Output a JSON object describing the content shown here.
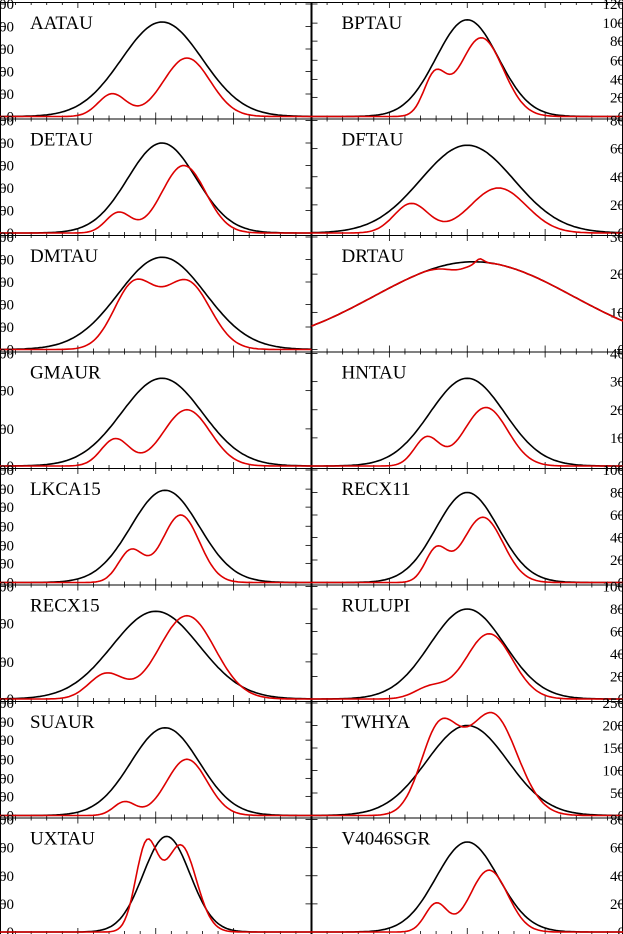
{
  "chart_data": [
    {
      "type": "line",
      "title": "AATAU",
      "ylim": [
        0,
        1
      ],
      "y_ticks": [
        {
          "value": 0,
          "label": "0"
        },
        {
          "value": 0.2,
          "label": "00"
        },
        {
          "value": 0.4,
          "label": "00"
        },
        {
          "value": 0.6,
          "label": "00"
        },
        {
          "value": 0.8,
          "label": "00"
        },
        {
          "value": 1.0,
          "label": "00"
        }
      ],
      "series": [
        {
          "color": "#000000",
          "peak": 0.84,
          "center": 0.52,
          "width": 0.13
        },
        {
          "color": "#dd0000",
          "components": [
            {
              "amp": 0.2,
              "center": 0.36,
              "width": 0.045
            },
            {
              "amp": 0.52,
              "center": 0.6,
              "width": 0.075
            }
          ]
        }
      ]
    },
    {
      "type": "line",
      "title": "BPTAU",
      "ylim": [
        0,
        1
      ],
      "y_ticks": [
        {
          "value": 0,
          "label": "0"
        },
        {
          "value": 0.17,
          "label": "20"
        },
        {
          "value": 0.33,
          "label": "40"
        },
        {
          "value": 0.5,
          "label": "60"
        },
        {
          "value": 0.67,
          "label": "80"
        },
        {
          "value": 0.83,
          "label": "100"
        },
        {
          "value": 1.0,
          "label": "120"
        }
      ],
      "series": [
        {
          "color": "#000000",
          "peak": 0.86,
          "center": 0.5,
          "width": 0.1
        },
        {
          "color": "#dd0000",
          "components": [
            {
              "amp": 0.34,
              "center": 0.395,
              "width": 0.035
            },
            {
              "amp": 0.7,
              "center": 0.545,
              "width": 0.07
            }
          ]
        }
      ]
    },
    {
      "type": "line",
      "title": "DETAU",
      "ylim": [
        0,
        1
      ],
      "y_ticks": [
        {
          "value": 0,
          "label": "0"
        },
        {
          "value": 0.2,
          "label": "00"
        },
        {
          "value": 0.4,
          "label": "00"
        },
        {
          "value": 0.6,
          "label": "00"
        },
        {
          "value": 0.8,
          "label": "00"
        },
        {
          "value": 1.0,
          "label": "00"
        }
      ],
      "series": [
        {
          "color": "#000000",
          "peak": 0.8,
          "center": 0.52,
          "width": 0.11
        },
        {
          "color": "#dd0000",
          "components": [
            {
              "amp": 0.18,
              "center": 0.38,
              "width": 0.04
            },
            {
              "amp": 0.6,
              "center": 0.59,
              "width": 0.07
            }
          ]
        }
      ]
    },
    {
      "type": "line",
      "title": "DFTAU",
      "ylim": [
        0,
        1
      ],
      "y_ticks": [
        {
          "value": 0,
          "label": "0"
        },
        {
          "value": 0.25,
          "label": "20"
        },
        {
          "value": 0.5,
          "label": "40"
        },
        {
          "value": 0.75,
          "label": "60"
        },
        {
          "value": 1.0,
          "label": "80"
        }
      ],
      "series": [
        {
          "color": "#000000",
          "peak": 0.78,
          "center": 0.5,
          "width": 0.15
        },
        {
          "color": "#dd0000",
          "components": [
            {
              "amp": 0.26,
              "center": 0.32,
              "width": 0.055
            },
            {
              "amp": 0.4,
              "center": 0.6,
              "width": 0.09
            }
          ]
        }
      ]
    },
    {
      "type": "line",
      "title": "DMTAU",
      "ylim": [
        0,
        1
      ],
      "y_ticks": [
        {
          "value": 0,
          "label": "0"
        },
        {
          "value": 0.2,
          "label": "00"
        },
        {
          "value": 0.4,
          "label": "00"
        },
        {
          "value": 0.6,
          "label": "00"
        },
        {
          "value": 0.8,
          "label": "00"
        },
        {
          "value": 1.0,
          "label": "00"
        }
      ],
      "series": [
        {
          "color": "#000000",
          "peak": 0.82,
          "center": 0.52,
          "width": 0.14
        },
        {
          "color": "#dd0000",
          "components": [
            {
              "amp": 0.57,
              "center": 0.43,
              "width": 0.065
            },
            {
              "amp": 0.6,
              "center": 0.6,
              "width": 0.075
            }
          ]
        }
      ]
    },
    {
      "type": "line",
      "title": "DRTAU",
      "ylim": [
        0,
        1
      ],
      "y_ticks": [
        {
          "value": 0,
          "label": "0"
        },
        {
          "value": 0.33,
          "label": "10"
        },
        {
          "value": 0.67,
          "label": "20"
        },
        {
          "value": 1.0,
          "label": "30"
        }
      ],
      "series": [
        {
          "color": "#000000",
          "peak": 0.78,
          "center": 0.52,
          "width": 0.32
        },
        {
          "color": "#dd0000",
          "components": [
            {
              "amp": 0.78,
              "center": 0.52,
              "width": 0.32
            }
          ]
        }
      ]
    },
    {
      "type": "line",
      "title": "GMAUR",
      "ylim": [
        0,
        1
      ],
      "y_ticks": [
        {
          "value": 0,
          "label": "0"
        },
        {
          "value": 0.33,
          "label": "00"
        },
        {
          "value": 0.67,
          "label": "00"
        },
        {
          "value": 1.0,
          "label": "00"
        }
      ],
      "series": [
        {
          "color": "#000000",
          "peak": 0.78,
          "center": 0.52,
          "width": 0.13
        },
        {
          "color": "#dd0000",
          "components": [
            {
              "amp": 0.24,
              "center": 0.37,
              "width": 0.045
            },
            {
              "amp": 0.5,
              "center": 0.6,
              "width": 0.075
            }
          ]
        }
      ]
    },
    {
      "type": "line",
      "title": "HNTAU",
      "ylim": [
        0,
        1
      ],
      "y_ticks": [
        {
          "value": 0,
          "label": "0"
        },
        {
          "value": 0.25,
          "label": "10"
        },
        {
          "value": 0.5,
          "label": "20"
        },
        {
          "value": 0.75,
          "label": "30"
        },
        {
          "value": 1.0,
          "label": "40"
        }
      ],
      "series": [
        {
          "color": "#000000",
          "peak": 0.78,
          "center": 0.5,
          "width": 0.12
        },
        {
          "color": "#dd0000",
          "components": [
            {
              "amp": 0.25,
              "center": 0.37,
              "width": 0.04
            },
            {
              "amp": 0.52,
              "center": 0.56,
              "width": 0.07
            }
          ]
        }
      ]
    },
    {
      "type": "line",
      "title": "LKCA15",
      "ylim": [
        0,
        1
      ],
      "y_ticks": [
        {
          "value": 0,
          "label": "0"
        },
        {
          "value": 0.17,
          "label": "00"
        },
        {
          "value": 0.33,
          "label": "00"
        },
        {
          "value": 0.5,
          "label": "00"
        },
        {
          "value": 0.67,
          "label": "00"
        },
        {
          "value": 0.83,
          "label": "00"
        },
        {
          "value": 1.0,
          "label": "00"
        }
      ],
      "series": [
        {
          "color": "#000000",
          "peak": 0.82,
          "center": 0.53,
          "width": 0.11
        },
        {
          "color": "#dd0000",
          "components": [
            {
              "amp": 0.28,
              "center": 0.42,
              "width": 0.04
            },
            {
              "amp": 0.6,
              "center": 0.58,
              "width": 0.06
            }
          ]
        }
      ]
    },
    {
      "type": "line",
      "title": "RECX11",
      "ylim": [
        0,
        1
      ],
      "y_ticks": [
        {
          "value": 0,
          "label": "0"
        },
        {
          "value": 0.2,
          "label": "20"
        },
        {
          "value": 0.4,
          "label": "40"
        },
        {
          "value": 0.6,
          "label": "60"
        },
        {
          "value": 0.8,
          "label": "80"
        },
        {
          "value": 1.0,
          "label": "100"
        }
      ],
      "series": [
        {
          "color": "#000000",
          "peak": 0.8,
          "center": 0.5,
          "width": 0.1
        },
        {
          "color": "#dd0000",
          "components": [
            {
              "amp": 0.28,
              "center": 0.4,
              "width": 0.035
            },
            {
              "amp": 0.58,
              "center": 0.55,
              "width": 0.065
            }
          ]
        }
      ]
    },
    {
      "type": "line",
      "title": "RECX15",
      "ylim": [
        0,
        1
      ],
      "y_ticks": [
        {
          "value": 0,
          "label": "0"
        },
        {
          "value": 0.33,
          "label": "00"
        },
        {
          "value": 0.67,
          "label": "00"
        },
        {
          "value": 1.0,
          "label": "00"
        }
      ],
      "series": [
        {
          "color": "#000000",
          "peak": 0.78,
          "center": 0.5,
          "width": 0.14
        },
        {
          "color": "#dd0000",
          "components": [
            {
              "amp": 0.22,
              "center": 0.34,
              "width": 0.055
            },
            {
              "amp": 0.74,
              "center": 0.6,
              "width": 0.09
            }
          ]
        }
      ]
    },
    {
      "type": "line",
      "title": "RULUPI",
      "ylim": [
        0,
        1
      ],
      "y_ticks": [
        {
          "value": 0,
          "label": "0"
        },
        {
          "value": 0.2,
          "label": "20"
        },
        {
          "value": 0.4,
          "label": "40"
        },
        {
          "value": 0.6,
          "label": "60"
        },
        {
          "value": 0.8,
          "label": "80"
        },
        {
          "value": 1.0,
          "label": "100"
        }
      ],
      "series": [
        {
          "color": "#000000",
          "peak": 0.8,
          "center": 0.5,
          "width": 0.12
        },
        {
          "color": "#dd0000",
          "components": [
            {
              "amp": 0.1,
              "center": 0.38,
              "width": 0.05
            },
            {
              "amp": 0.58,
              "center": 0.57,
              "width": 0.075
            }
          ]
        }
      ]
    },
    {
      "type": "line",
      "title": "SUAUR",
      "ylim": [
        0,
        1
      ],
      "y_ticks": [
        {
          "value": 0,
          "label": "0"
        },
        {
          "value": 0.17,
          "label": "00"
        },
        {
          "value": 0.33,
          "label": "00"
        },
        {
          "value": 0.5,
          "label": "00"
        },
        {
          "value": 0.67,
          "label": "00"
        },
        {
          "value": 0.83,
          "label": "00"
        },
        {
          "value": 1.0,
          "label": "00"
        }
      ],
      "series": [
        {
          "color": "#000000",
          "peak": 0.78,
          "center": 0.53,
          "width": 0.11
        },
        {
          "color": "#dd0000",
          "components": [
            {
              "amp": 0.12,
              "center": 0.4,
              "width": 0.035
            },
            {
              "amp": 0.5,
              "center": 0.6,
              "width": 0.065
            }
          ]
        }
      ]
    },
    {
      "type": "line",
      "title": "TWHYA",
      "ylim": [
        0,
        1
      ],
      "y_ticks": [
        {
          "value": 0,
          "label": "0"
        },
        {
          "value": 0.2,
          "label": "50"
        },
        {
          "value": 0.4,
          "label": "100"
        },
        {
          "value": 0.6,
          "label": "150"
        },
        {
          "value": 0.8,
          "label": "200"
        },
        {
          "value": 1.0,
          "label": "250"
        }
      ],
      "series": [
        {
          "color": "#000000",
          "peak": 0.8,
          "center": 0.5,
          "width": 0.13
        },
        {
          "color": "#dd0000",
          "components": [
            {
              "amp": 0.75,
              "center": 0.41,
              "width": 0.06
            },
            {
              "amp": 0.9,
              "center": 0.58,
              "width": 0.08
            }
          ]
        }
      ]
    },
    {
      "type": "line",
      "title": "UXTAU",
      "ylim": [
        0,
        1
      ],
      "y_ticks": [
        {
          "value": 0,
          "label": "0"
        },
        {
          "value": 0.25,
          "label": "00"
        },
        {
          "value": 0.5,
          "label": "00"
        },
        {
          "value": 0.75,
          "label": "00"
        },
        {
          "value": 1.0,
          "label": "00"
        }
      ],
      "series": [
        {
          "color": "#000000",
          "peak": 0.85,
          "center": 0.535,
          "width": 0.075
        },
        {
          "color": "#dd0000",
          "components": [
            {
              "amp": 0.75,
              "center": 0.47,
              "width": 0.035
            },
            {
              "amp": 0.77,
              "center": 0.58,
              "width": 0.05
            }
          ]
        }
      ]
    },
    {
      "type": "line",
      "title": "V4046SGR",
      "ylim": [
        0,
        1
      ],
      "y_ticks": [
        {
          "value": 0,
          "label": "0"
        },
        {
          "value": 0.25,
          "label": "20"
        },
        {
          "value": 0.5,
          "label": "40"
        },
        {
          "value": 0.75,
          "label": "60"
        },
        {
          "value": 1.0,
          "label": "80"
        }
      ],
      "series": [
        {
          "color": "#000000",
          "peak": 0.8,
          "center": 0.5,
          "width": 0.1
        },
        {
          "color": "#dd0000",
          "components": [
            {
              "amp": 0.25,
              "center": 0.4,
              "width": 0.035
            },
            {
              "amp": 0.55,
              "center": 0.57,
              "width": 0.06
            }
          ]
        }
      ]
    }
  ]
}
